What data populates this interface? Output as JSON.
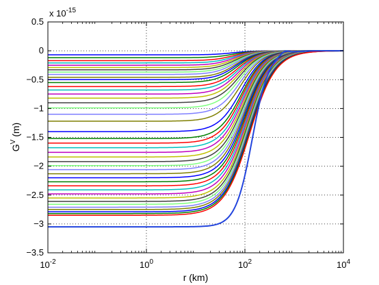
{
  "chart_data": {
    "type": "line",
    "x_scale": "log",
    "xlim": [
      0.01,
      10000
    ],
    "ylim": [
      -3.5,
      0.5
    ],
    "y_multiplier_label": "x 10",
    "y_multiplier_exp": "-15",
    "grid": true,
    "xlabel": "r  (km)",
    "ylabel_base": "G",
    "ylabel_sup": "V",
    "ylabel_unit": " (m)",
    "x_ticks": [
      {
        "value": 0.01,
        "base": "10",
        "exp": "-2"
      },
      {
        "value": 1,
        "base": "10",
        "exp": "0"
      },
      {
        "value": 100,
        "base": "10",
        "exp": "2"
      },
      {
        "value": 10000,
        "base": "10",
        "exp": "4"
      }
    ],
    "y_ticks": [
      {
        "value": 0.5,
        "label": "0.5"
      },
      {
        "value": 0,
        "label": "0"
      },
      {
        "value": -0.5,
        "label": "−0.5"
      },
      {
        "value": -1,
        "label": "−1"
      },
      {
        "value": -1.5,
        "label": "−1.5"
      },
      {
        "value": -2,
        "label": "−2"
      },
      {
        "value": -2.5,
        "label": "−2.5"
      },
      {
        "value": -3,
        "label": "−3"
      },
      {
        "value": -3.5,
        "label": "−3.5"
      }
    ],
    "colors": [
      "#0000ff",
      "#007f00",
      "#ff0000",
      "#00bfbf",
      "#bf00bf",
      "#bfbf00",
      "#404040",
      "#7fff7f",
      "#7f7fff",
      "#7f7f00"
    ],
    "series_plateaus": [
      -0.07,
      -0.12,
      -0.17,
      -0.21,
      -0.25,
      -0.29,
      -0.33,
      -0.37,
      -0.41,
      -0.46,
      -0.5,
      -0.55,
      -0.62,
      -0.68,
      -0.75,
      -0.82,
      -0.9,
      -0.99,
      -1.1,
      -1.22,
      -1.4,
      -1.52,
      -1.6,
      -1.68,
      -1.76,
      -1.84,
      -1.92,
      -1.99,
      -2.06,
      -2.13,
      -2.2,
      -2.27,
      -2.34,
      -2.41,
      -2.48,
      -2.55,
      -2.61,
      -2.66,
      -2.71,
      -2.75,
      -2.79,
      -2.82,
      -2.85
    ],
    "final_series": {
      "plateau": -3.05,
      "color": "#2244dd",
      "peak_x": 640,
      "peak_y": 0.05
    }
  }
}
